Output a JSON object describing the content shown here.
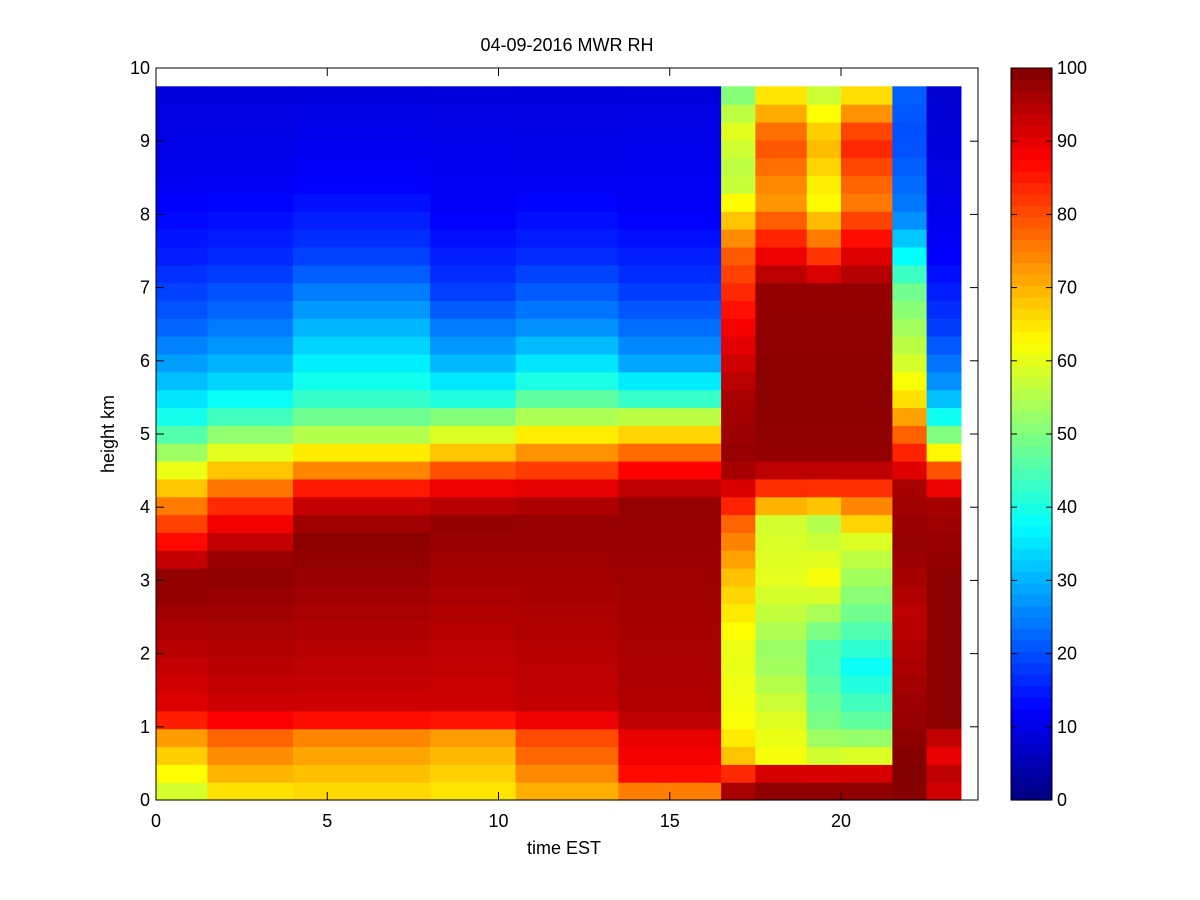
{
  "chart_data": {
    "type": "heatmap",
    "title": "04-09-2016 MWR RH",
    "xlabel": "time EST",
    "ylabel": "height km",
    "xlim": [
      0,
      24
    ],
    "ylim": [
      0,
      10
    ],
    "x_ticks": [
      "0",
      "5",
      "10",
      "15",
      "20"
    ],
    "y_ticks": [
      "0",
      "1",
      "2",
      "3",
      "4",
      "5",
      "6",
      "7",
      "8",
      "9",
      "10"
    ],
    "colorbar": {
      "min": 0,
      "max": 100,
      "colormap": "jet",
      "ticks": [
        "0",
        "10",
        "20",
        "30",
        "40",
        "50",
        "60",
        "70",
        "80",
        "90",
        "100"
      ]
    },
    "grid": false,
    "time_bins_hours": [
      0,
      1,
      2,
      3,
      4,
      5,
      6,
      7,
      8,
      9,
      10,
      11,
      12,
      13,
      14,
      15,
      16,
      17,
      18,
      19,
      20,
      21,
      22,
      23
    ],
    "height_range_km": [
      0,
      9.75
    ],
    "profiles": [
      {
        "t_start": 0,
        "t_end": 1.5,
        "levels_km": [
          0,
          0.1,
          0.5,
          1.0,
          1.15,
          3.0,
          3.3,
          3.6,
          4.0,
          4.4,
          4.9,
          5.3,
          5.8,
          6.5,
          7.5,
          8.5,
          9.75
        ],
        "rh": [
          42,
          58,
          65,
          75,
          90,
          99,
          93,
          85,
          76,
          64,
          48,
          38,
          30,
          22,
          15,
          11,
          9
        ]
      },
      {
        "t_start": 1.5,
        "t_end": 4,
        "levels_km": [
          0,
          0.1,
          0.5,
          1.0,
          1.15,
          3.2,
          3.6,
          4.0,
          4.4,
          4.8,
          5.3,
          5.8,
          6.5,
          7.5,
          8.5,
          9.75
        ],
        "rh": [
          45,
          65,
          72,
          80,
          92,
          99,
          92,
          84,
          72,
          58,
          42,
          32,
          24,
          16,
          11,
          9
        ]
      },
      {
        "t_start": 4,
        "t_end": 8,
        "levels_km": [
          0,
          0.1,
          0.5,
          1.0,
          1.15,
          3.6,
          4.0,
          4.3,
          4.6,
          5.0,
          5.4,
          5.8,
          6.5,
          7.5,
          8.5,
          9.75
        ],
        "rh": [
          48,
          66,
          70,
          76,
          92,
          99,
          94,
          84,
          70,
          55,
          44,
          38,
          30,
          18,
          12,
          9
        ]
      },
      {
        "t_start": 8,
        "t_end": 10.5,
        "levels_km": [
          0,
          0.1,
          0.5,
          1.0,
          1.15,
          3.8,
          4.2,
          4.5,
          4.8,
          5.2,
          5.5,
          6.0,
          7.0,
          8.0,
          9.75
        ],
        "rh": [
          50,
          65,
          68,
          74,
          92,
          98,
          92,
          80,
          66,
          52,
          40,
          30,
          18,
          12,
          9
        ]
      },
      {
        "t_start": 10.5,
        "t_end": 13.5,
        "levels_km": [
          0,
          0.1,
          0.5,
          1.0,
          1.15,
          3.9,
          4.2,
          4.5,
          4.9,
          5.3,
          5.8,
          6.5,
          7.5,
          8.5,
          9.75
        ],
        "rh": [
          55,
          70,
          76,
          82,
          93,
          98,
          92,
          82,
          68,
          52,
          38,
          26,
          16,
          11,
          9
        ]
      },
      {
        "t_start": 13.5,
        "t_end": 16.5,
        "levels_km": [
          0,
          0.2,
          0.5,
          0.9,
          1.15,
          4.1,
          4.5,
          4.8,
          5.2,
          5.5,
          6.0,
          7.0,
          8.0,
          9.75
        ],
        "rh": [
          60,
          85,
          88,
          90,
          95,
          98,
          88,
          75,
          58,
          42,
          28,
          18,
          12,
          9
        ]
      },
      {
        "t_start": 16.5,
        "t_end": 17.5,
        "levels_km": [
          0,
          0.3,
          0.5,
          1.0,
          2.0,
          3.0,
          3.8,
          4.3,
          4.6,
          5.5,
          6.5,
          7.5,
          8.5,
          9.2,
          9.75
        ],
        "rh": [
          100,
          90,
          70,
          62,
          60,
          68,
          78,
          92,
          98,
          96,
          88,
          78,
          55,
          60,
          48
        ]
      },
      {
        "t_start": 17.5,
        "t_end": 19,
        "levels_km": [
          0,
          0.35,
          0.5,
          1.0,
          2.0,
          3.0,
          3.8,
          4.3,
          4.6,
          5.5,
          7.0,
          7.5,
          8.2,
          9.0,
          9.75
        ],
        "rh": [
          100,
          95,
          62,
          60,
          52,
          60,
          58,
          85,
          98,
          99,
          98,
          88,
          72,
          80,
          62
        ]
      },
      {
        "t_start": 19,
        "t_end": 20,
        "levels_km": [
          0,
          0.35,
          0.5,
          1.0,
          2.0,
          3.0,
          3.8,
          4.3,
          4.6,
          5.5,
          7.0,
          7.5,
          8.2,
          9.0,
          9.75
        ],
        "rh": [
          100,
          95,
          60,
          50,
          44,
          62,
          55,
          85,
          98,
          99,
          98,
          80,
          62,
          70,
          55
        ]
      },
      {
        "t_start": 20,
        "t_end": 21.5,
        "levels_km": [
          0,
          0.35,
          0.5,
          1.0,
          1.8,
          2.5,
          3.5,
          4.2,
          4.6,
          5.5,
          7.0,
          7.6,
          8.2,
          9.0,
          9.75
        ],
        "rh": [
          100,
          95,
          62,
          48,
          38,
          48,
          58,
          80,
          98,
          99,
          98,
          88,
          75,
          85,
          62
        ]
      },
      {
        "t_start": 21.5,
        "t_end": 22.5,
        "levels_km": [
          0,
          0.5,
          1.0,
          2.5,
          3.5,
          4.3,
          4.6,
          5.0,
          5.5,
          6.0,
          7.0,
          7.5,
          8.0,
          9.0,
          9.75
        ],
        "rh": [
          99,
          100,
          98,
          94,
          98,
          96,
          88,
          78,
          65,
          58,
          48,
          36,
          25,
          20,
          22
        ]
      },
      {
        "t_start": 22.5,
        "t_end": 23.5,
        "levels_km": [
          0,
          0.3,
          0.7,
          1.0,
          3.0,
          4.1,
          4.5,
          4.8,
          5.2,
          5.6,
          6.5,
          7.5,
          8.5,
          9.75
        ],
        "rh": [
          90,
          95,
          88,
          99,
          99,
          96,
          80,
          60,
          40,
          28,
          18,
          12,
          10,
          8
        ]
      }
    ]
  }
}
